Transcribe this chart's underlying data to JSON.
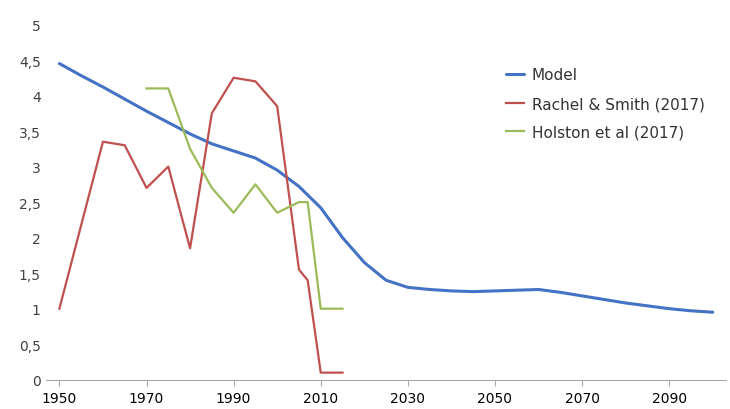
{
  "model": {
    "x": [
      1950,
      1955,
      1960,
      1965,
      1970,
      1975,
      1980,
      1985,
      1990,
      1995,
      2000,
      2005,
      2010,
      2015,
      2020,
      2025,
      2030,
      2035,
      2040,
      2045,
      2050,
      2055,
      2060,
      2065,
      2070,
      2075,
      2080,
      2085,
      2090,
      2095,
      2100
    ],
    "y": [
      4.45,
      4.28,
      4.12,
      3.95,
      3.78,
      3.62,
      3.46,
      3.32,
      3.22,
      3.12,
      2.95,
      2.72,
      2.42,
      2.0,
      1.65,
      1.4,
      1.3,
      1.27,
      1.25,
      1.24,
      1.25,
      1.26,
      1.27,
      1.23,
      1.18,
      1.13,
      1.08,
      1.04,
      1.0,
      0.97,
      0.95
    ],
    "color": "#4472C4",
    "label": "Model"
  },
  "rachel": {
    "x": [
      1950,
      1960,
      1965,
      1970,
      1975,
      1980,
      1985,
      1990,
      1995,
      2000,
      2005,
      2007,
      2010,
      2015
    ],
    "y": [
      1.0,
      3.35,
      3.3,
      2.7,
      3.0,
      1.85,
      3.75,
      4.25,
      4.2,
      3.85,
      1.55,
      1.4,
      0.1,
      0.1
    ],
    "color": "#C0504D",
    "label": "Rachel & Smith (2017)"
  },
  "holston": {
    "x": [
      1970,
      1975,
      1980,
      1985,
      1990,
      1995,
      2000,
      2005,
      2007,
      2010,
      2015
    ],
    "y": [
      4.1,
      4.1,
      3.25,
      2.7,
      2.35,
      2.75,
      2.35,
      2.5,
      2.5,
      1.0,
      1.0
    ],
    "color": "#9BBB59",
    "label": "Holston et al (2017)"
  },
  "xlim": [
    1947,
    2103
  ],
  "ylim": [
    0,
    5.3
  ],
  "xticks": [
    1950,
    1970,
    1990,
    2010,
    2030,
    2050,
    2070,
    2090
  ],
  "yticks": [
    0,
    0.5,
    1.0,
    1.5,
    2.0,
    2.5,
    3.0,
    3.5,
    4.0,
    4.5,
    5.0
  ],
  "ytick_labels": [
    "0",
    "0,5",
    "1",
    "1,5",
    "2",
    "2,5",
    "3",
    "3,5",
    "4",
    "4,5",
    "5"
  ],
  "background_color": "#FFFFFF"
}
